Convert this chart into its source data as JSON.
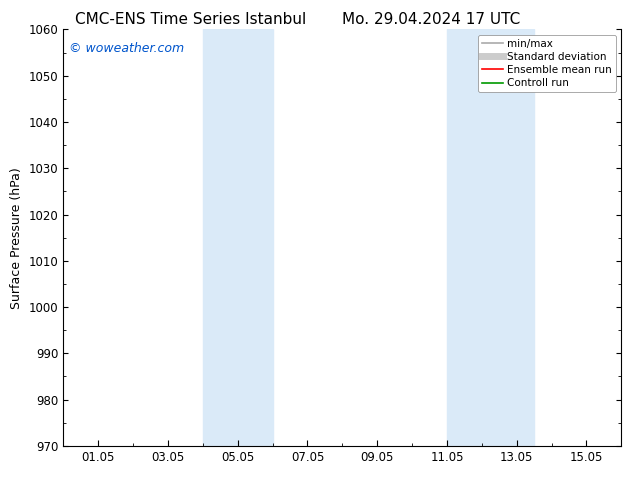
{
  "title_left": "CMC-ENS Time Series Istanbul",
  "title_right": "Mo. 29.04.2024 17 UTC",
  "ylabel": "Surface Pressure (hPa)",
  "ylim": [
    970,
    1060
  ],
  "yticks": [
    970,
    980,
    990,
    1000,
    1010,
    1020,
    1030,
    1040,
    1050,
    1060
  ],
  "xtick_labels": [
    "01.05",
    "03.05",
    "05.05",
    "07.05",
    "09.05",
    "11.05",
    "13.05",
    "15.05"
  ],
  "xtick_positions": [
    1,
    3,
    5,
    7,
    9,
    11,
    13,
    15
  ],
  "xlim": [
    0,
    16
  ],
  "shaded_bands": [
    {
      "x_start": 4.0,
      "x_end": 6.0
    },
    {
      "x_start": 11.0,
      "x_end": 13.5
    }
  ],
  "shaded_color": "#daeaf8",
  "watermark": "© woweather.com",
  "watermark_color": "#0055cc",
  "legend_entries": [
    {
      "label": "min/max",
      "color": "#aaaaaa",
      "lw": 1.2
    },
    {
      "label": "Standard deviation",
      "color": "#cccccc",
      "lw": 5
    },
    {
      "label": "Ensemble mean run",
      "color": "#ff0000",
      "lw": 1.2
    },
    {
      "label": "Controll run",
      "color": "#009900",
      "lw": 1.2
    }
  ],
  "bg_color": "#ffffff",
  "title_fontsize": 11,
  "label_fontsize": 9,
  "tick_fontsize": 8.5,
  "legend_fontsize": 7.5
}
